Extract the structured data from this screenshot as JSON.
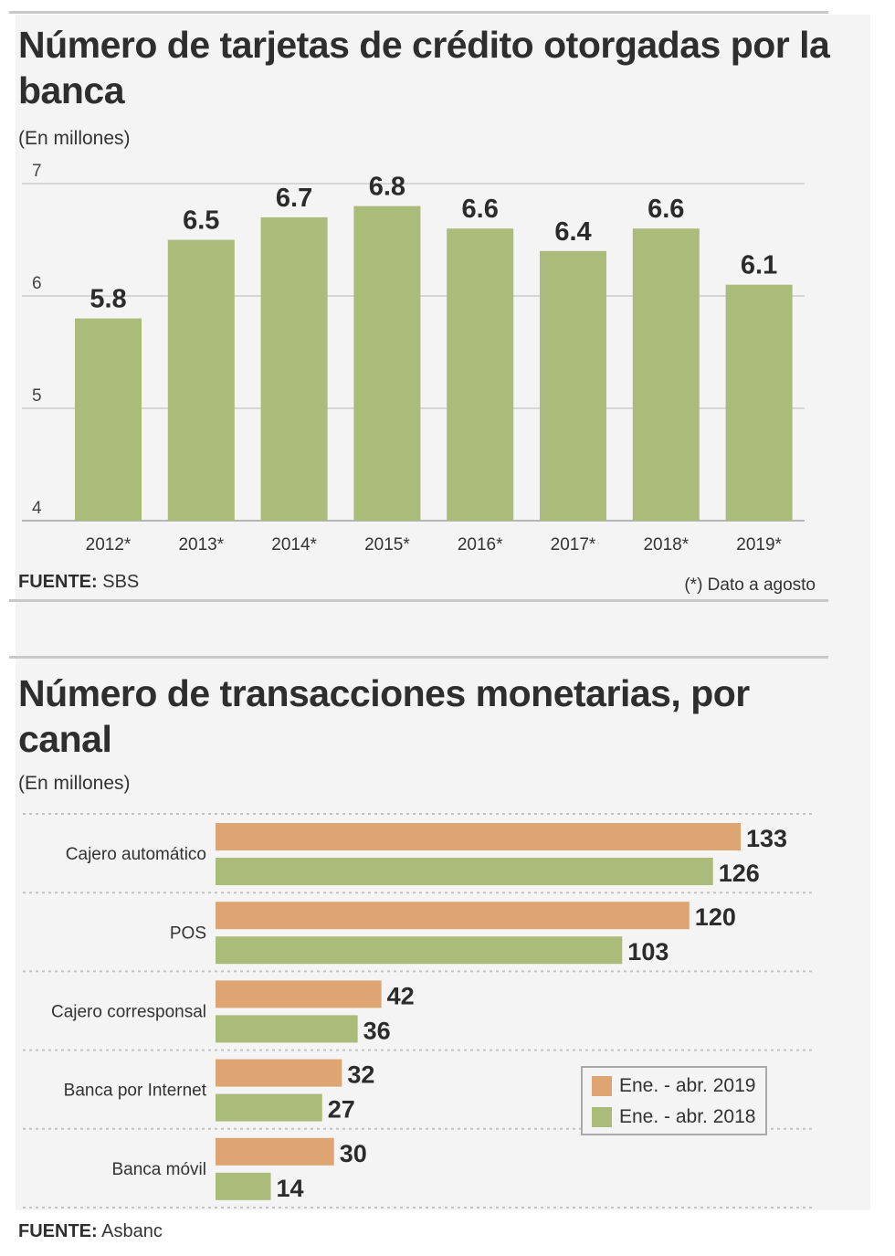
{
  "chart_data": [
    {
      "type": "bar",
      "title": "Número de tarjetas de crédito otorgadas por la banca",
      "subtitle": "(En millones)",
      "categories": [
        "2012*",
        "2013*",
        "2014*",
        "2015*",
        "2016*",
        "2017*",
        "2018*",
        "2019*"
      ],
      "values": [
        5.8,
        6.5,
        6.7,
        6.8,
        6.6,
        6.4,
        6.6,
        6.1
      ],
      "value_labels": [
        "5.8",
        "6.5",
        "6.7",
        "6.8",
        "6.6",
        "6.4",
        "6.6",
        "6.1"
      ],
      "yticks": [
        4,
        5,
        6,
        7
      ],
      "ylim": [
        4,
        7
      ],
      "xlabel": "",
      "ylabel": "",
      "grid": true,
      "color": "#abbb7a",
      "source_label": "FUENTE:",
      "source": "SBS",
      "note": "(*) Dato a agosto"
    },
    {
      "type": "bar",
      "orientation": "horizontal",
      "title": "Número de transacciones monetarias, por canal",
      "subtitle": "(En millones)",
      "categories": [
        "Cajero automático",
        "POS",
        "Cajero corresponsal",
        "Banca por Internet",
        "Banca móvil"
      ],
      "series": [
        {
          "name": "Ene. - abr. 2019",
          "color": "#dea572",
          "values": [
            133,
            120,
            42,
            32,
            30
          ]
        },
        {
          "name": "Ene. - abr. 2018",
          "color": "#abbb7a",
          "values": [
            126,
            103,
            36,
            27,
            14
          ]
        }
      ],
      "xlim": [
        0,
        133
      ],
      "legend": "bottom-right",
      "source_label": "FUENTE:",
      "source": "Asbanc"
    }
  ]
}
